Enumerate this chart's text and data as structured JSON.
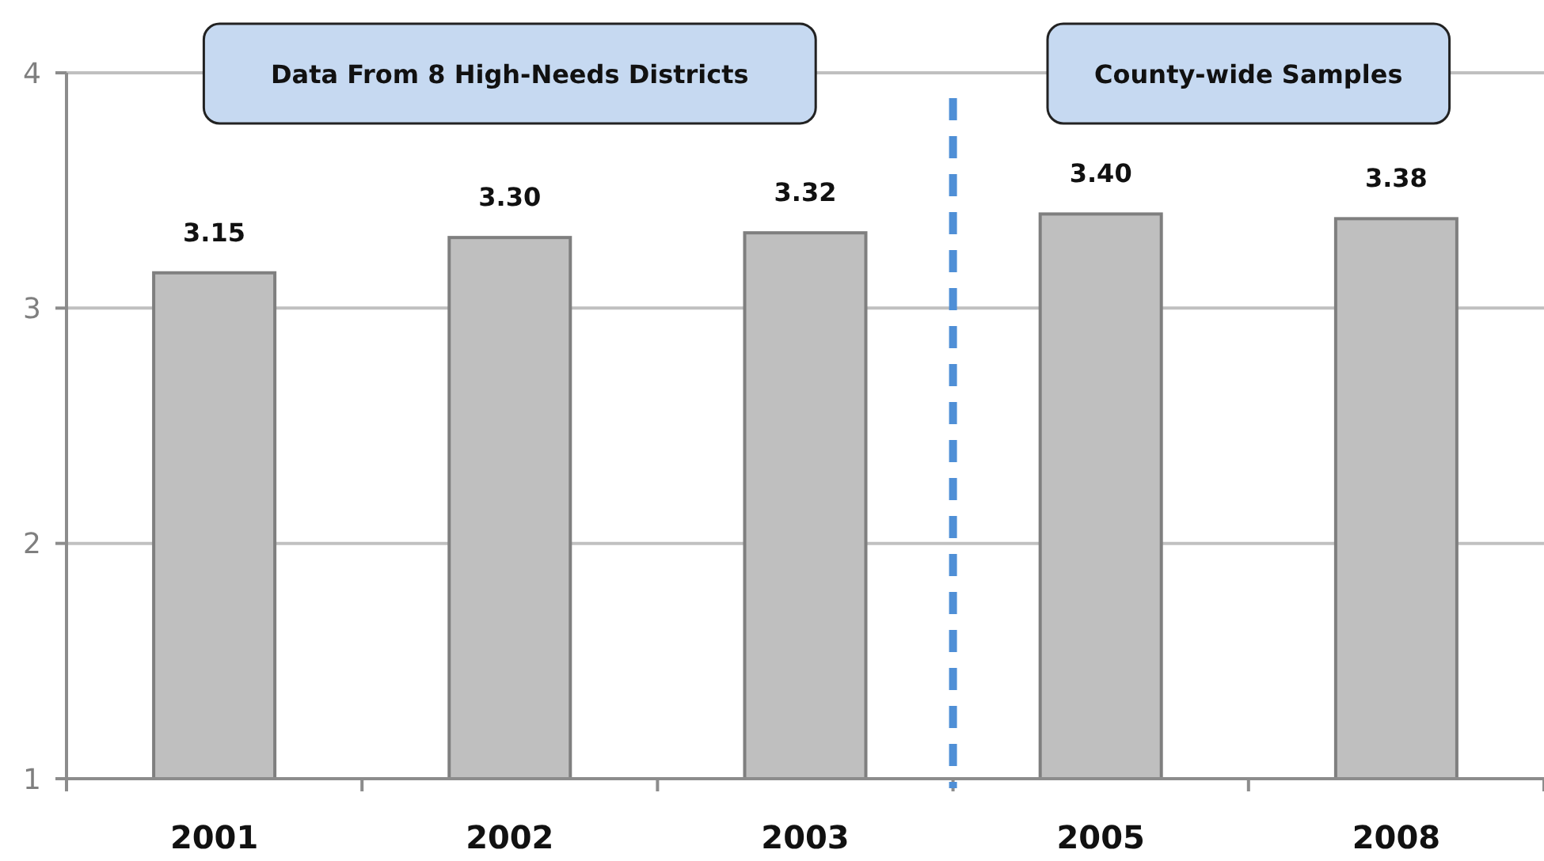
{
  "chart_data": {
    "type": "bar",
    "categories": [
      "2001",
      "2002",
      "2003",
      "2005",
      "2008"
    ],
    "values": [
      3.15,
      3.3,
      3.32,
      3.4,
      3.38
    ],
    "value_labels": [
      "3.15",
      "3.30",
      "3.32",
      "3.40",
      "3.38"
    ],
    "color": "#bfbfbf",
    "ylim": [
      1,
      4
    ],
    "yticks": [
      1,
      2,
      3,
      4
    ],
    "grid": "y",
    "bands": [
      {
        "axis": "x",
        "from": "2001",
        "to": "2003",
        "label": "Data From 8 High-Needs Districts"
      },
      {
        "axis": "x",
        "from": "2005",
        "to": "2008",
        "label": "County-wide Samples"
      }
    ]
  }
}
